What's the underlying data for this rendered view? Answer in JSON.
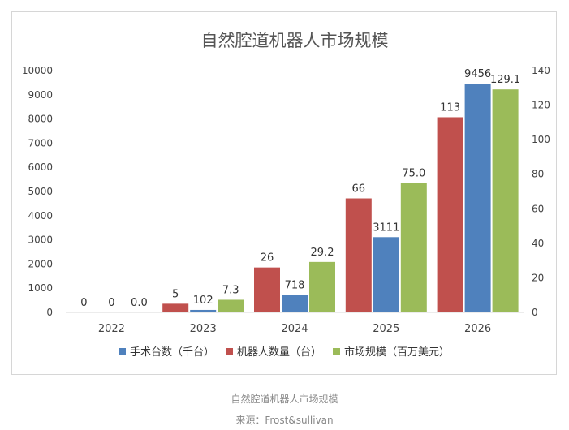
{
  "chart_data": {
    "type": "bar",
    "title": "自然腔道机器人市场规模",
    "categories": [
      "2022",
      "2023",
      "2024",
      "2025",
      "2026"
    ],
    "ylim": [
      0,
      10000
    ],
    "yticks": [
      0,
      1000,
      2000,
      3000,
      4000,
      5000,
      6000,
      7000,
      8000,
      9000,
      10000
    ],
    "y2lim": [
      0,
      140
    ],
    "y2ticks": [
      0,
      20,
      40,
      60,
      80,
      100,
      120,
      140
    ],
    "legend_position": "bottom",
    "grid": false,
    "series": [
      {
        "name": "手术台数（千台）",
        "axis": "left",
        "color": "#4f81bd",
        "values": [
          0,
          102,
          718,
          3111,
          9456
        ],
        "labels": [
          "0",
          "102",
          "718",
          "3111",
          "9456"
        ]
      },
      {
        "name": "机器人数量（台）",
        "axis": "right",
        "color": "#c0504d",
        "values": [
          0,
          5,
          26,
          66,
          113
        ],
        "labels": [
          "0",
          "5",
          "26",
          "66",
          "113"
        ]
      },
      {
        "name": "市场规模（百万美元）",
        "axis": "right",
        "color": "#9bbb59",
        "values": [
          0.0,
          7.3,
          29.2,
          75.0,
          129.1
        ],
        "labels": [
          "0.0",
          "7.3",
          "29.2",
          "75.0",
          "129.1"
        ]
      }
    ],
    "draw_order": [
      1,
      0,
      2
    ]
  },
  "caption": {
    "title": "自然腔道机器人市场规模",
    "source": "来源：Frost&sullivan"
  }
}
